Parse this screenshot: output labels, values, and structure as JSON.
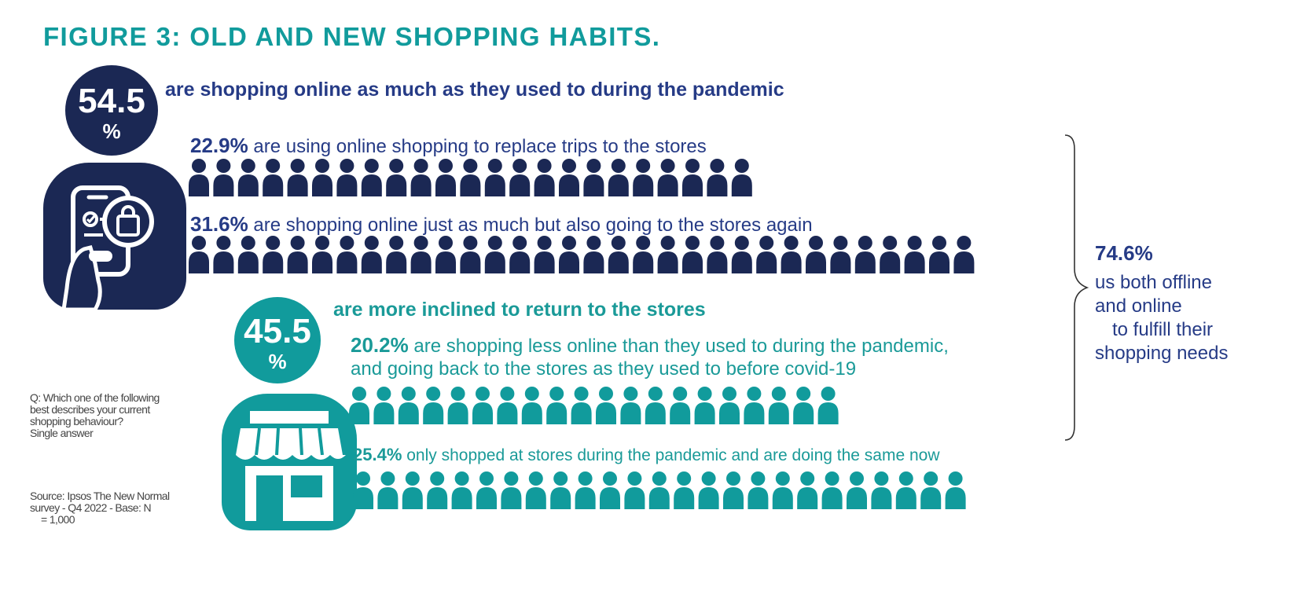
{
  "title": "FIGURE 3: OLD AND NEW SHOPPING HABITS.",
  "colors": {
    "navy": "#1b2854",
    "navy_text": "#263b86",
    "teal": "#119b9c"
  },
  "online_group": {
    "value": "54.5",
    "unit": "%",
    "headline": "are shopping online as much as they used to during the pandemic",
    "icon": "phone-shopping-bag-icon"
  },
  "store_group": {
    "value": "45.5",
    "unit": "%",
    "headline": "are more inclined to return to the stores",
    "icon": "storefront-icon"
  },
  "stats": {
    "s1": {
      "pct": "22.9%",
      "text": "are using online shopping to replace trips to the stores"
    },
    "s2": {
      "pct": "31.6%",
      "text": "are shopping online just as much but also going to the stores again"
    },
    "s3": {
      "pct": "20.2%",
      "line1": "are shopping less online than they used to during the pandemic,",
      "line2": "and going back to the stores as they used to before covid-19"
    },
    "s4": {
      "pct": "25.4%",
      "text": "only shopped at stores during the pandemic and are doing the same now"
    }
  },
  "summary": {
    "pct": "74.6%",
    "lines": [
      "us both offline",
      "and online",
      "to fulfill their",
      "shopping needs"
    ]
  },
  "question_note": [
    "Q: Which one of the following",
    "best describes your current",
    "shopping behaviour?",
    "Single answer"
  ],
  "source_note": [
    "Source: Ipsos The New Normal",
    "survey - Q4 2022 - Base: N",
    "= 1,000"
  ],
  "chart_data": {
    "type": "pictograph",
    "title": "FIGURE 3: OLD AND NEW SHOPPING HABITS.",
    "groups": [
      {
        "label": "are shopping online as much as they used to during the pandemic",
        "value": 54.5
      },
      {
        "label": "are more inclined to return to the stores",
        "value": 45.5
      }
    ],
    "series": [
      {
        "value": 22.9,
        "icons": 23,
        "color": "#1b2854"
      },
      {
        "value": 31.6,
        "icons": 32,
        "color": "#1b2854"
      },
      {
        "value": 20.2,
        "icons": 20,
        "color": "#119b9c"
      },
      {
        "value": 25.4,
        "icons": 25,
        "color": "#119b9c"
      }
    ],
    "combined": {
      "value": 74.6
    }
  }
}
